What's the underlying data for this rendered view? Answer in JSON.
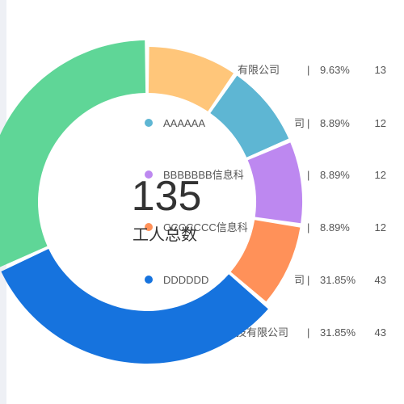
{
  "chart_data": {
    "type": "pie",
    "variant": "donut",
    "center_value": "135",
    "center_label": "工人总数",
    "slices": [
      {
        "legend": "有限公司",
        "percent": "9.63%",
        "value": 13,
        "color": "#ffc67a"
      },
      {
        "legend": "AAAAAA",
        "legend_right": "司",
        "percent": "8.89%",
        "value": 12,
        "color": "#5eb6d3"
      },
      {
        "legend": "BBBBBBB信息科",
        "percent": "8.89%",
        "value": 12,
        "color": "#bd88f0"
      },
      {
        "legend": "CCCCCCC信息科",
        "percent": "8.89%",
        "value": 12,
        "color": "#ff9159"
      },
      {
        "legend": "DDDDDD",
        "legend_right": "司",
        "percent": "31.85%",
        "value": 43,
        "color": "#1673de"
      },
      {
        "legend": "技有限公司",
        "percent": "31.85%",
        "value": 43,
        "color": "#5fd697"
      }
    ],
    "separator": "|",
    "legend_placement": "right-overlapping"
  }
}
